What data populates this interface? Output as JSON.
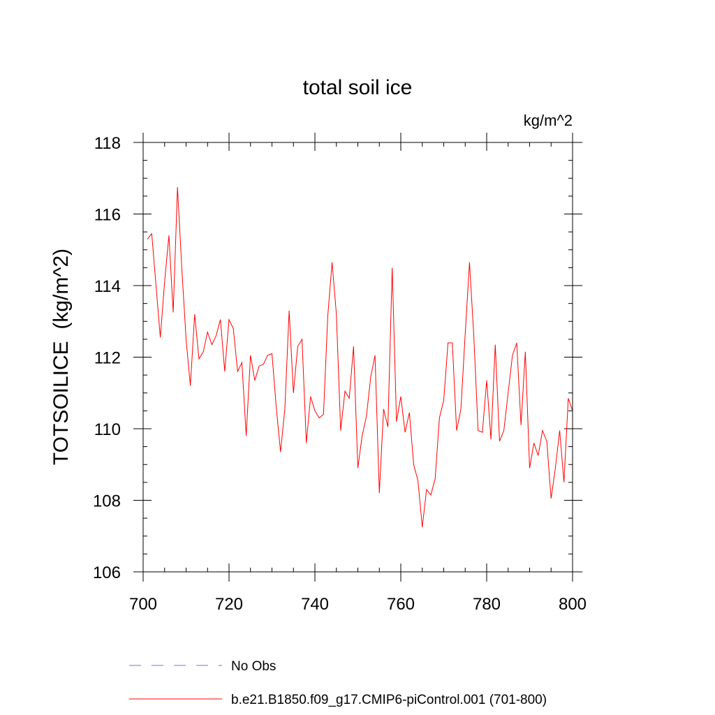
{
  "chart_data": {
    "type": "line",
    "title": "total soil ice",
    "units_label": "kg/m^2",
    "ylabel": "TOTSOILICE  (kg/m^2)",
    "xlabel": "",
    "xlim": [
      700,
      800
    ],
    "ylim": [
      106,
      118
    ],
    "x_ticks": [
      700,
      720,
      740,
      760,
      780,
      800
    ],
    "y_ticks": [
      106,
      108,
      110,
      112,
      114,
      116,
      118
    ],
    "x_tick_labels": [
      "700",
      "720",
      "740",
      "760",
      "780",
      "800"
    ],
    "y_tick_labels": [
      "106",
      "108",
      "110",
      "112",
      "114",
      "116",
      "118"
    ],
    "grid": false,
    "legend_position": "bottom",
    "series": [
      {
        "name": "No Obs",
        "color": "#7b6fd0",
        "dash": "dashed",
        "x": [],
        "values": []
      },
      {
        "name": "b.e21.B1850.f09_g17.CMIP6-piControl.001 (701-800)",
        "color": "#ff0000",
        "dash": "solid",
        "x": [
          701,
          702,
          703,
          704,
          705,
          706,
          707,
          708,
          709,
          710,
          711,
          712,
          713,
          714,
          715,
          716,
          717,
          718,
          719,
          720,
          721,
          722,
          723,
          724,
          725,
          726,
          727,
          728,
          729,
          730,
          731,
          732,
          733,
          734,
          735,
          736,
          737,
          738,
          739,
          740,
          741,
          742,
          743,
          744,
          745,
          746,
          747,
          748,
          749,
          750,
          751,
          752,
          753,
          754,
          755,
          756,
          757,
          758,
          759,
          760,
          761,
          762,
          763,
          764,
          765,
          766,
          767,
          768,
          769,
          770,
          771,
          772,
          773,
          774,
          775,
          776,
          777,
          778,
          779,
          780,
          781,
          782,
          783,
          784,
          785,
          786,
          787,
          788,
          789,
          790,
          791,
          792,
          793,
          794,
          795,
          796,
          797,
          798,
          799,
          800
        ],
        "values": [
          115.3,
          115.45,
          114.0,
          112.55,
          114.1,
          115.4,
          113.25,
          116.75,
          114.5,
          112.5,
          111.2,
          113.2,
          111.95,
          112.15,
          112.7,
          112.35,
          112.6,
          113.05,
          111.6,
          113.05,
          112.8,
          111.6,
          111.85,
          109.8,
          112.05,
          111.35,
          111.75,
          111.8,
          112.05,
          112.1,
          110.6,
          109.35,
          110.55,
          113.3,
          111.0,
          112.3,
          112.5,
          109.6,
          110.9,
          110.5,
          110.3,
          110.4,
          113.15,
          114.65,
          113.2,
          109.95,
          111.05,
          110.85,
          112.3,
          108.9,
          109.8,
          110.35,
          111.45,
          112.05,
          108.2,
          110.55,
          110.05,
          114.5,
          110.2,
          110.9,
          109.9,
          110.45,
          109.0,
          108.55,
          107.25,
          108.3,
          108.15,
          108.6,
          110.3,
          110.8,
          112.4,
          112.4,
          109.95,
          110.55,
          112.65,
          114.65,
          112.6,
          109.95,
          109.9,
          111.35,
          109.7,
          112.35,
          109.65,
          109.95,
          111.0,
          112.05,
          112.4,
          110.1,
          112.15,
          108.9,
          109.6,
          109.25,
          109.95,
          109.65,
          108.05,
          108.9,
          109.95,
          108.5,
          110.85,
          110.5
        ]
      }
    ]
  }
}
